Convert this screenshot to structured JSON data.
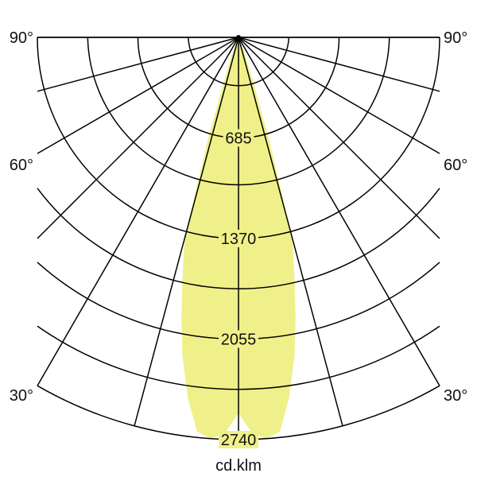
{
  "chart_data": {
    "type": "polar",
    "unit_label": "cd.klm",
    "radial_ticks": [
      685,
      1370,
      2055,
      2740
    ],
    "radial_max": 2740,
    "radial_grid_step": 342.5,
    "angle_grid_step_deg": 15,
    "angle_labels": {
      "left": [
        "90°",
        "60°",
        "30°"
      ],
      "right": [
        "90°",
        "60°",
        "30°"
      ]
    },
    "fill_color": "#f0f08a",
    "series": [
      {
        "angles_deg": [
          0,
          2,
          4,
          6,
          8,
          10,
          11.5,
          13,
          15,
          16.7,
          18,
          20,
          22,
          25
        ],
        "values": [
          2560,
          2700,
          2740,
          2700,
          2480,
          2200,
          1950,
          1700,
          1420,
          720,
          350,
          150,
          50,
          0
        ]
      }
    ]
  }
}
